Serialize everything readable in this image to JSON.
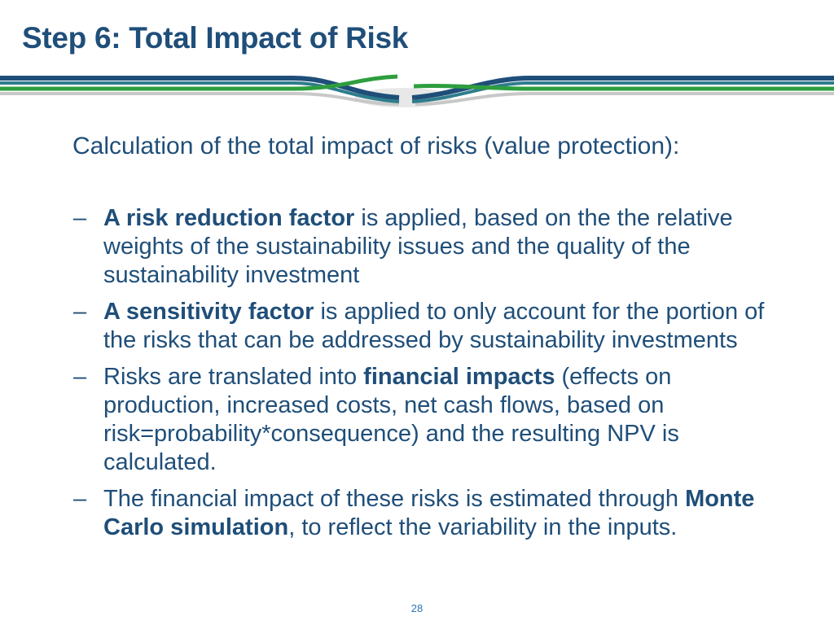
{
  "slide": {
    "title": "Step 6: Total Impact of Risk",
    "intro": "Calculation of the total impact of risks (value protection):",
    "bullets": [
      {
        "dash": "–",
        "parts": [
          {
            "text": "A risk reduction factor",
            "bold": true
          },
          {
            "text": " is applied, based on the the relative weights of the sustainability issues and the quality of the sustainability investment",
            "bold": false
          }
        ]
      },
      {
        "dash": "–",
        "parts": [
          {
            "text": "A sensitivity factor",
            "bold": true
          },
          {
            "text": " is applied to only account for the portion of the risks that can be addressed by sustainability investments",
            "bold": false
          }
        ]
      },
      {
        "dash": "–",
        "parts": [
          {
            "text": "Risks are translated into ",
            "bold": false
          },
          {
            "text": "financial impacts",
            "bold": true
          },
          {
            "text": " (effects on production, increased costs, net cash flows, based on risk=probability*consequence) and the resulting NPV is calculated.",
            "bold": false
          }
        ]
      },
      {
        "dash": "–",
        "parts": [
          {
            "text": "The financial impact of these risks is estimated through ",
            "bold": false
          },
          {
            "text": "Monte Carlo simulation",
            "bold": true
          },
          {
            "text": ", to reflect the variability in the inputs.",
            "bold": false
          }
        ]
      }
    ],
    "page_number": "28"
  },
  "colors": {
    "title": "#1f4e79",
    "text": "#1f4e79",
    "page_number": "#2e75b6",
    "banner_navy": "#1f4e79",
    "banner_teal": "#2e7d8c",
    "banner_green": "#2e9e3e",
    "banner_gray": "#c8c8c8"
  },
  "icons": [
    "banner-ribbon"
  ]
}
